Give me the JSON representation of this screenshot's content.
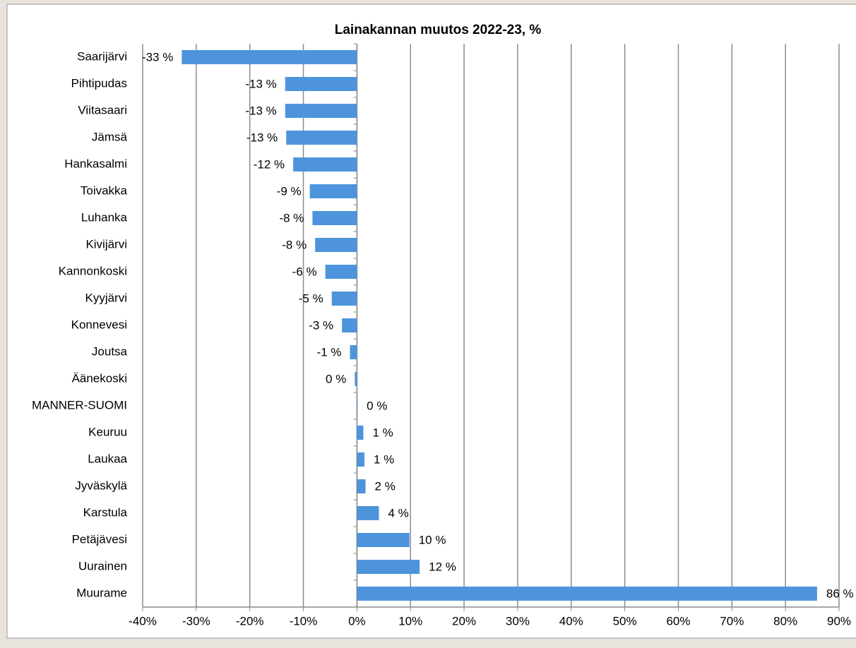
{
  "chart_data": {
    "type": "bar",
    "orientation": "horizontal",
    "title": "Lainakannan muutos 2022-23, %",
    "categories": [
      "Saarijärvi",
      "Pihtipudas",
      "Viitasaari",
      "Jämsä",
      "Hankasalmi",
      "Toivakka",
      "Luhanka",
      "Kivijärvi",
      "Kannonkoski",
      "Kyyjärvi",
      "Konnevesi",
      "Joutsa",
      "Äänekoski",
      "MANNER-SUOMI",
      "Keuruu",
      "Laukaa",
      "Jyväskylä",
      "Karstula",
      "Petäjävesi",
      "Uurainen",
      "Muurame"
    ],
    "values": [
      -32.7,
      -13.4,
      -13.4,
      -13.2,
      -11.9,
      -8.8,
      -8.3,
      -7.8,
      -5.9,
      -4.7,
      -2.8,
      -1.3,
      -0.4,
      0.1,
      1.2,
      1.4,
      1.6,
      4.1,
      9.8,
      11.7,
      85.9
    ],
    "value_labels": [
      "-33 %",
      "-13 %",
      "-13 %",
      "-13 %",
      "-12 %",
      "-9 %",
      "-8 %",
      "-8 %",
      "-6 %",
      "-5 %",
      "-3 %",
      "-1 %",
      "0 %",
      "0 %",
      "1 %",
      "1 %",
      "2 %",
      "4 %",
      "10 %",
      "12 %",
      "86 %"
    ],
    "color": "#4e94dc",
    "xlim": [
      -40,
      90
    ],
    "xticks": [
      {
        "value": -40,
        "label": "-40%"
      },
      {
        "value": -30,
        "label": "-30%"
      },
      {
        "value": -20,
        "label": "-20%"
      },
      {
        "value": -10,
        "label": "-10%"
      },
      {
        "value": 0,
        "label": "0%"
      },
      {
        "value": 10,
        "label": "10%"
      },
      {
        "value": 20,
        "label": "20%"
      },
      {
        "value": 30,
        "label": "30%"
      },
      {
        "value": 40,
        "label": "40%"
      },
      {
        "value": 50,
        "label": "50%"
      },
      {
        "value": 60,
        "label": "60%"
      },
      {
        "value": 70,
        "label": "70%"
      },
      {
        "value": 80,
        "label": "80%"
      },
      {
        "value": 90,
        "label": "90%"
      }
    ],
    "grid": true
  }
}
